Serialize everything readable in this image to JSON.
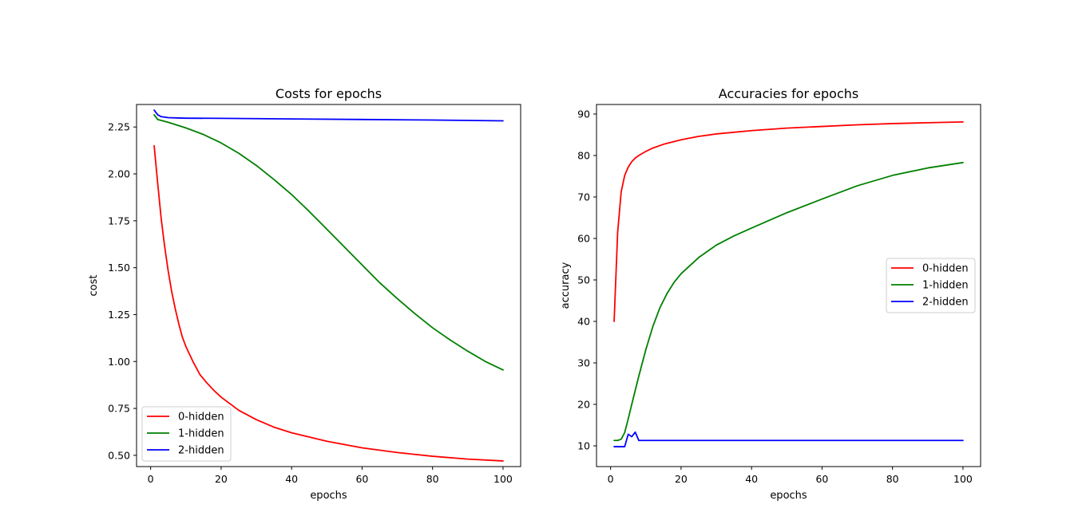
{
  "chart_data": [
    {
      "type": "line",
      "title": "Costs for epochs",
      "xlabel": "epochs",
      "ylabel": "cost",
      "xlim": [
        -4,
        105
      ],
      "ylim": [
        0.44,
        2.37
      ],
      "xticks": [
        0,
        20,
        40,
        60,
        80,
        100
      ],
      "xtick_labels": [
        "0",
        "20",
        "40",
        "60",
        "80",
        "100"
      ],
      "yticks": [
        0.5,
        0.75,
        1.0,
        1.25,
        1.5,
        1.75,
        2.0,
        2.25
      ],
      "ytick_labels": [
        "0.50",
        "0.75",
        "1.00",
        "1.25",
        "1.50",
        "1.75",
        "2.00",
        "2.25"
      ],
      "grid": false,
      "legend": "lower-left",
      "series": [
        {
          "name": "0-hidden",
          "color": "#ff0000",
          "x": [
            1,
            2,
            3,
            4,
            5,
            6,
            7,
            8,
            9,
            10,
            12,
            14,
            16,
            18,
            20,
            25,
            30,
            35,
            40,
            50,
            60,
            70,
            80,
            90,
            100
          ],
          "y": [
            2.15,
            1.95,
            1.76,
            1.61,
            1.48,
            1.37,
            1.28,
            1.2,
            1.13,
            1.08,
            1.0,
            0.93,
            0.885,
            0.845,
            0.81,
            0.74,
            0.69,
            0.65,
            0.62,
            0.575,
            0.54,
            0.515,
            0.495,
            0.48,
            0.47
          ]
        },
        {
          "name": "1-hidden",
          "color": "#008000",
          "x": [
            1,
            2,
            3,
            5,
            10,
            15,
            20,
            25,
            30,
            35,
            40,
            45,
            50,
            55,
            60,
            65,
            70,
            75,
            80,
            85,
            90,
            95,
            100
          ],
          "y": [
            2.315,
            2.29,
            2.285,
            2.275,
            2.245,
            2.21,
            2.165,
            2.11,
            2.045,
            1.97,
            1.89,
            1.8,
            1.705,
            1.61,
            1.515,
            1.42,
            1.335,
            1.255,
            1.18,
            1.115,
            1.055,
            1.0,
            0.955
          ]
        },
        {
          "name": "2-hidden",
          "color": "#0000ff",
          "x": [
            1,
            2,
            3,
            5,
            8,
            10,
            20,
            40,
            60,
            80,
            100
          ],
          "y": [
            2.34,
            2.315,
            2.305,
            2.3,
            2.298,
            2.297,
            2.296,
            2.293,
            2.29,
            2.287,
            2.283
          ]
        }
      ]
    },
    {
      "type": "line",
      "title": "Accuracies for epochs",
      "xlabel": "epochs",
      "ylabel": "accuracy",
      "xlim": [
        -4,
        105
      ],
      "ylim": [
        5,
        92.3
      ],
      "xticks": [
        0,
        20,
        40,
        60,
        80,
        100
      ],
      "xtick_labels": [
        "0",
        "20",
        "40",
        "60",
        "80",
        "100"
      ],
      "yticks": [
        10,
        20,
        30,
        40,
        50,
        60,
        70,
        80,
        90
      ],
      "ytick_labels": [
        "10",
        "20",
        "30",
        "40",
        "50",
        "60",
        "70",
        "80",
        "90"
      ],
      "grid": false,
      "legend": "center-right",
      "series": [
        {
          "name": "0-hidden",
          "color": "#ff0000",
          "x": [
            1,
            2,
            3,
            4,
            5,
            6,
            7,
            8,
            10,
            12,
            15,
            20,
            25,
            30,
            40,
            50,
            60,
            70,
            80,
            90,
            100
          ],
          "y": [
            40,
            61.5,
            71.2,
            75.2,
            77.2,
            78.5,
            79.4,
            80.0,
            81.0,
            81.8,
            82.7,
            83.8,
            84.6,
            85.2,
            86.0,
            86.6,
            87.0,
            87.4,
            87.7,
            87.9,
            88.1
          ]
        },
        {
          "name": "1-hidden",
          "color": "#008000",
          "x": [
            1,
            2,
            3,
            4,
            5,
            6,
            8,
            10,
            12,
            14,
            16,
            18,
            20,
            25,
            30,
            35,
            40,
            50,
            60,
            70,
            80,
            90,
            100
          ],
          "y": [
            11.3,
            11.3,
            11.6,
            13.2,
            16.5,
            20.0,
            26.8,
            33.2,
            38.8,
            43.3,
            46.7,
            49.4,
            51.5,
            55.4,
            58.4,
            60.6,
            62.5,
            66.2,
            69.5,
            72.7,
            75.2,
            77.0,
            78.3
          ]
        },
        {
          "name": "2-hidden",
          "color": "#0000ff",
          "x": [
            1,
            2,
            3,
            4,
            5,
            6,
            7,
            8,
            9,
            10,
            20,
            40,
            60,
            80,
            100
          ],
          "y": [
            9.8,
            9.8,
            9.8,
            9.8,
            12.8,
            12.2,
            13.3,
            11.3,
            11.3,
            11.3,
            11.3,
            11.3,
            11.3,
            11.3,
            11.3
          ]
        }
      ]
    }
  ]
}
